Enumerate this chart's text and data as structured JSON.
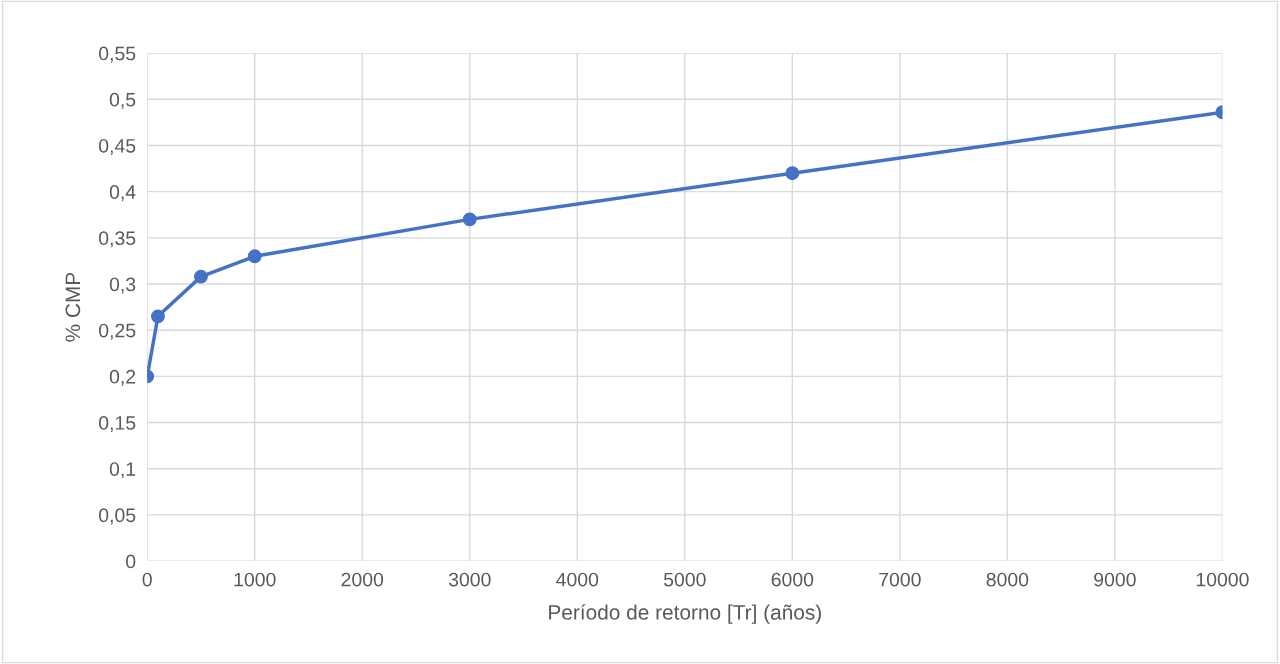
{
  "chart_data": {
    "type": "line",
    "xlabel": "Período de retorno [Tr] (años)",
    "ylabel": "% CMP",
    "x": [
      0,
      100,
      500,
      1000,
      3000,
      6000,
      10000
    ],
    "series": [
      {
        "color": "#4472c4",
        "values": [
          0.2,
          0.265,
          0.308,
          0.33,
          0.37,
          0.42,
          0.486
        ]
      }
    ],
    "xlim": [
      0,
      10000
    ],
    "xticks": [
      0,
      1000,
      2000,
      3000,
      4000,
      5000,
      6000,
      7000,
      8000,
      9000,
      10000
    ],
    "ylim": [
      0,
      0.55
    ],
    "yticks": [
      0,
      {
        "value": 0.05,
        "label": "0,05"
      },
      {
        "value": 0.1,
        "label": "0,1"
      },
      {
        "value": 0.15,
        "label": "0,15"
      },
      {
        "value": 0.2,
        "label": "0,2"
      },
      {
        "value": 0.25,
        "label": "0,25"
      },
      {
        "value": 0.3,
        "label": "0,3"
      },
      {
        "value": 0.35,
        "label": "0,35"
      },
      {
        "value": 0.4,
        "label": "0,4"
      },
      {
        "value": 0.45,
        "label": "0,45"
      },
      {
        "value": 0.5,
        "label": "0,5"
      },
      {
        "value": 0.55,
        "label": "0,55"
      }
    ],
    "grid": true,
    "marker": "circle",
    "line_style": "solid"
  }
}
